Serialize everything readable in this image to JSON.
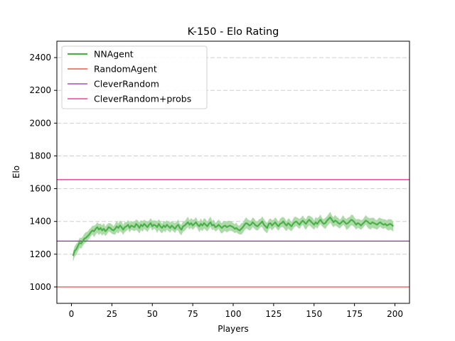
{
  "chart_data": {
    "type": "line",
    "title": "K-150 - Elo Rating",
    "xlabel": "Players",
    "ylabel": "Elo",
    "xlim": [
      -9,
      209
    ],
    "ylim": [
      900,
      2500
    ],
    "xticks": [
      0,
      25,
      50,
      75,
      100,
      125,
      150,
      175,
      200
    ],
    "yticks": [
      1000,
      1200,
      1400,
      1600,
      1800,
      2000,
      2200,
      2400
    ],
    "grid": "horizontal-dashed",
    "legend_position": "top-left",
    "series": [
      {
        "name": "NNAgent",
        "kind": "line_with_band",
        "color": "#4daf4a",
        "band_color": "#a8d9a4",
        "band_width": 60,
        "x_start": 1,
        "x_step": 1,
        "values": [
          1190,
          1220,
          1230,
          1250,
          1270,
          1265,
          1280,
          1295,
          1300,
          1310,
          1320,
          1335,
          1345,
          1340,
          1355,
          1365,
          1350,
          1360,
          1345,
          1355,
          1340,
          1350,
          1365,
          1360,
          1350,
          1345,
          1355,
          1370,
          1360,
          1375,
          1365,
          1350,
          1365,
          1370,
          1380,
          1360,
          1375,
          1370,
          1365,
          1385,
          1375,
          1360,
          1380,
          1370,
          1385,
          1375,
          1365,
          1380,
          1390,
          1370,
          1380,
          1375,
          1365,
          1385,
          1370,
          1360,
          1375,
          1365,
          1380,
          1370,
          1360,
          1375,
          1365,
          1355,
          1370,
          1380,
          1360,
          1350,
          1370,
          1375,
          1385,
          1395,
          1380,
          1390,
          1375,
          1385,
          1395,
          1380,
          1370,
          1385,
          1375,
          1390,
          1380,
          1370,
          1385,
          1395,
          1375,
          1380,
          1365,
          1370,
          1380,
          1370,
          1360,
          1370,
          1375,
          1365,
          1370,
          1375,
          1370,
          1365,
          1355,
          1360,
          1350,
          1345,
          1355,
          1365,
          1380,
          1390,
          1385,
          1375,
          1380,
          1395,
          1385,
          1375,
          1370,
          1380,
          1390,
          1400,
          1380,
          1370,
          1360,
          1385,
          1390,
          1375,
          1385,
          1395,
          1380,
          1370,
          1385,
          1390,
          1400,
          1385,
          1375,
          1390,
          1380,
          1370,
          1385,
          1395,
          1400,
          1390,
          1380,
          1395,
          1405,
          1395,
          1385,
          1400,
          1410,
          1400,
          1390,
          1380,
          1395,
          1385,
          1400,
          1410,
          1395,
          1385,
          1390,
          1405,
          1415,
          1425,
          1410,
          1395,
          1405,
          1400,
          1390,
          1385,
          1395,
          1405,
          1395,
          1385,
          1390,
          1400,
          1410,
          1405,
          1395,
          1380,
          1390,
          1385,
          1375,
          1385,
          1395,
          1405,
          1400,
          1390,
          1385,
          1395,
          1390,
          1385,
          1380,
          1390,
          1395,
          1385,
          1380,
          1385,
          1375,
          1380,
          1385,
          1380,
          1370
        ]
      },
      {
        "name": "RandomAgent",
        "kind": "hline",
        "color": "#e8392a",
        "value": 1000
      },
      {
        "name": "CleverRandom",
        "kind": "hline",
        "color": "#9b27b7",
        "value": 1280
      },
      {
        "name": "CleverRandom+probs",
        "kind": "hline",
        "color": "#e8217f",
        "value": 1655
      }
    ]
  }
}
